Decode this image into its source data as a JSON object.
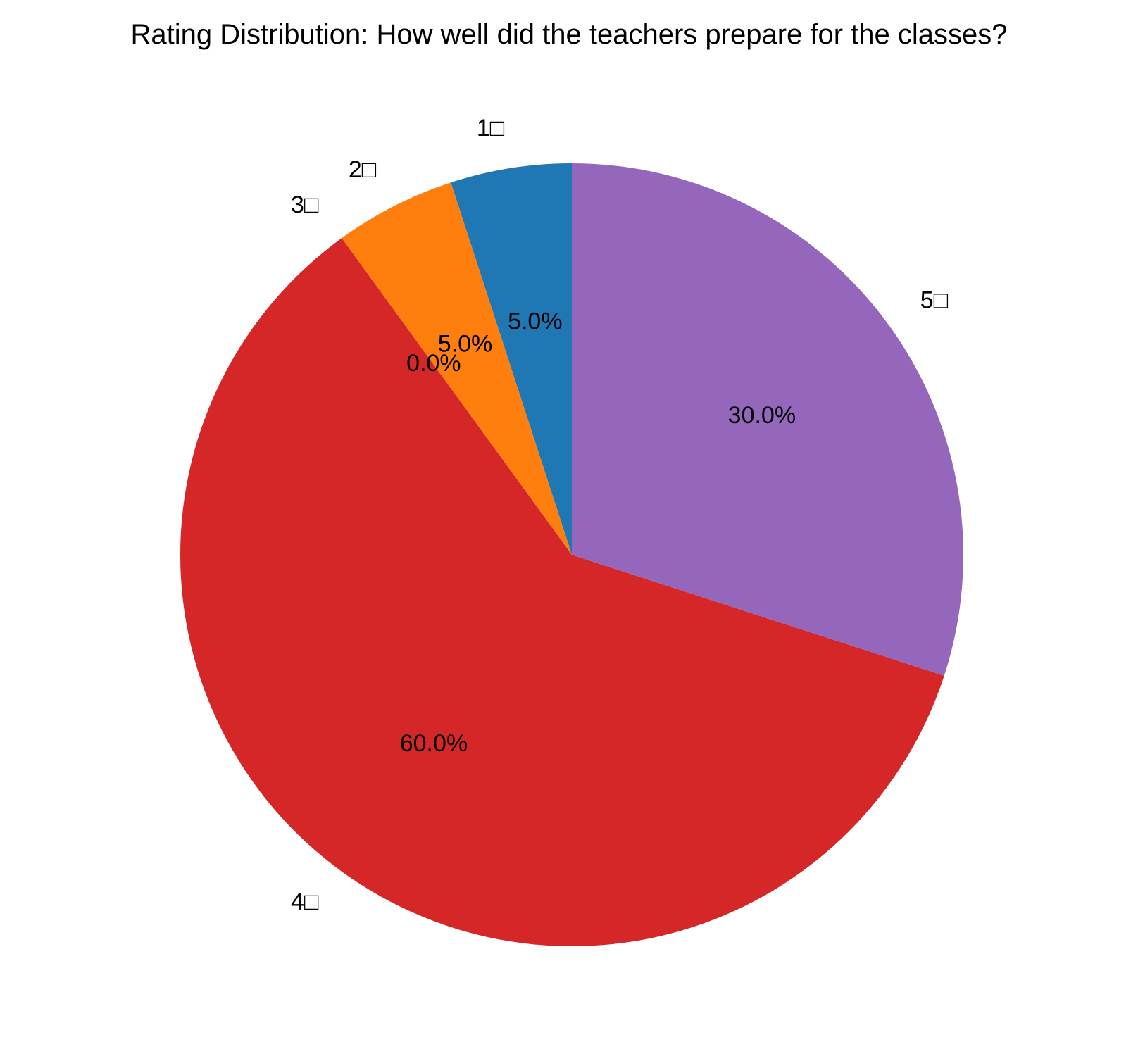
{
  "chart_data": {
    "type": "pie",
    "title": "Rating Distribution: How well did the teachers prepare for the classes?",
    "categories": [
      "1□",
      "2□",
      "3□",
      "4□",
      "5□"
    ],
    "values": [
      5.0,
      5.0,
      0.0,
      60.0,
      30.0
    ],
    "value_labels": [
      "5.0%",
      "5.0%",
      "0.0%",
      "60.0%",
      "30.0%"
    ],
    "colors": [
      "#1f77b4",
      "#ff7f0e",
      "#2ca02c",
      "#d62728",
      "#9467bd"
    ],
    "start_angle_deg": 90,
    "direction": "counterclockwise",
    "legend": "none"
  }
}
